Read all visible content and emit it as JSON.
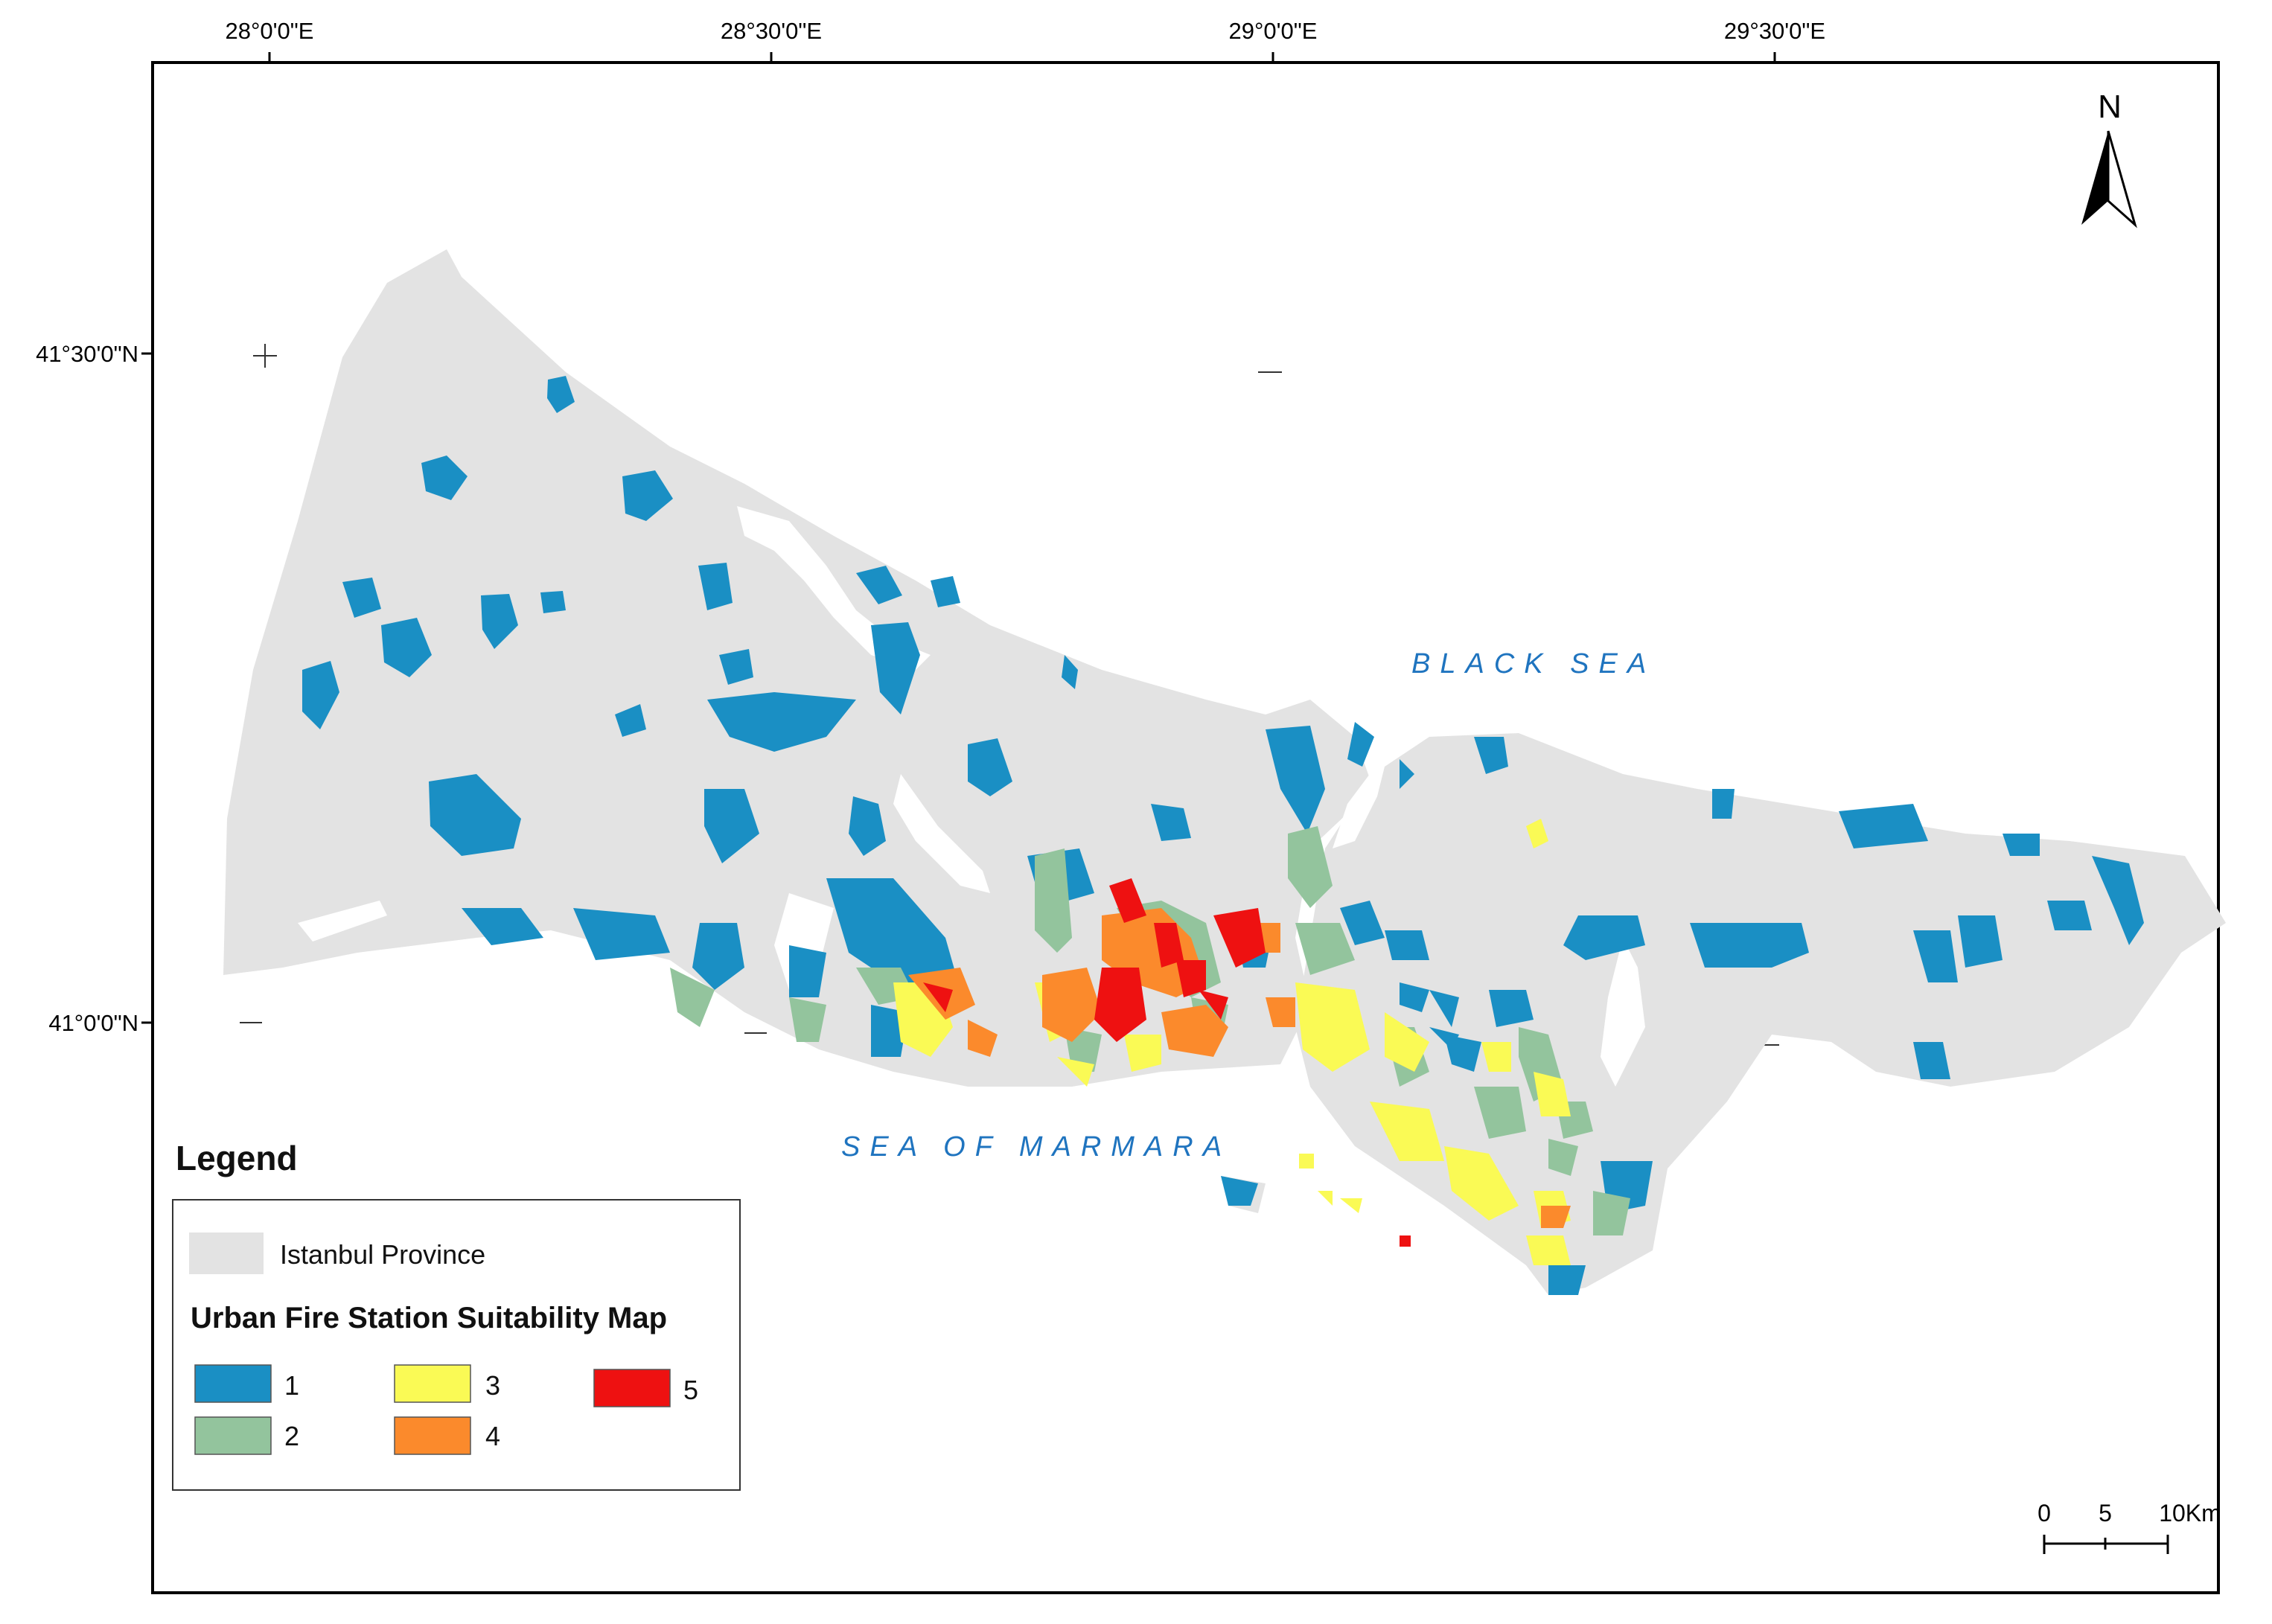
{
  "graticule": {
    "longitudes": [
      "28°0'0\"E",
      "28°30'0\"E",
      "29°0'0\"E",
      "29°30'0\"E"
    ],
    "latitudes": [
      "41°30'0\"N",
      "41°0'0\"N"
    ]
  },
  "water": {
    "black_sea": "BLACK SEA",
    "marmara": "SEA OF MARMARA"
  },
  "north_arrow": {
    "label": "N"
  },
  "scale_bar": {
    "labels": [
      "0",
      "5",
      "10Km"
    ]
  },
  "legend": {
    "title": "Legend",
    "province_label": "Istanbul Province",
    "subtitle": "Urban Fire Station Suitability Map",
    "classes": [
      {
        "label": "1",
        "color": "#1a8fc4"
      },
      {
        "label": "2",
        "color": "#93c49d"
      },
      {
        "label": "3",
        "color": "#fafa55"
      },
      {
        "label": "4",
        "color": "#fb8a2c"
      },
      {
        "label": "5",
        "color": "#ee1111"
      }
    ],
    "province_color": "#e3e3e3"
  }
}
